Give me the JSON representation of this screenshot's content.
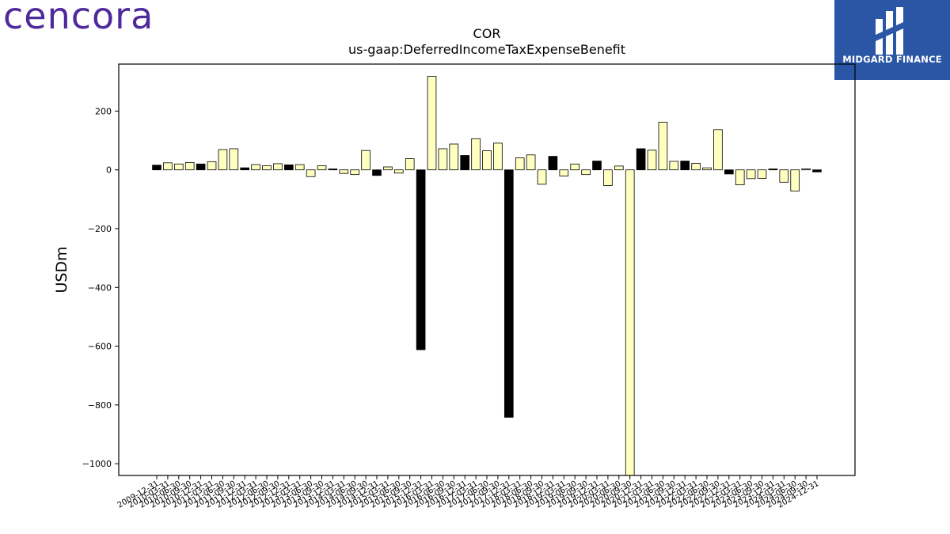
{
  "branding": {
    "company_logo_text": "cencora",
    "company_logo_color": "#4f2a9c",
    "partner_name": "MIDGARD FINANCE",
    "partner_bg_color": "#2b56a5"
  },
  "chart_data": {
    "type": "bar",
    "title": "COR",
    "subtitle": "us-gaap:DeferredIncomeTaxExpenseBenefit",
    "ylabel": "USDm",
    "xlabel": "",
    "ylim": [
      -1040,
      360
    ],
    "yticks": [
      200,
      0,
      -200,
      -400,
      -600,
      -800,
      -1000
    ],
    "grid": false,
    "colors": {
      "positive": "#ffffc0",
      "negative": "#000000",
      "outline": "#000000"
    },
    "categories": [
      "2009-12-31",
      "2010-03-31",
      "2010-06-30",
      "2010-09-30",
      "2010-12-31",
      "2011-03-31",
      "2011-06-30",
      "2011-09-30",
      "2011-12-31",
      "2012-03-31",
      "2012-06-30",
      "2012-09-30",
      "2012-12-31",
      "2013-03-31",
      "2013-06-30",
      "2013-09-30",
      "2013-12-31",
      "2014-03-31",
      "2014-06-30",
      "2014-09-30",
      "2014-12-31",
      "2015-03-31",
      "2015-06-30",
      "2015-09-30",
      "2015-12-31",
      "2016-03-31",
      "2016-06-30",
      "2016-09-30",
      "2016-12-31",
      "2017-03-31",
      "2017-06-30",
      "2017-09-30",
      "2017-12-31",
      "2018-03-31",
      "2018-06-30",
      "2018-09-30",
      "2018-12-31",
      "2019-03-31",
      "2019-06-30",
      "2019-09-30",
      "2019-12-31",
      "2020-03-31",
      "2020-06-30",
      "2020-09-30",
      "2020-12-31",
      "2021-03-31",
      "2021-06-30",
      "2021-09-30",
      "2021-12-31",
      "2022-03-31",
      "2022-06-30",
      "2022-09-30",
      "2022-12-31",
      "2023-03-31",
      "2023-06-30",
      "2023-09-30",
      "2023-12-31",
      "2024-03-31",
      "2024-06-30",
      "2024-09-30",
      "2024-12-31"
    ],
    "xtick_labels": [
      "2009-12-31",
      "2010-03-31",
      "2010-06-30",
      "2010-09-30",
      "2010-12-31",
      "2011-03-31",
      "2011-06-30",
      "2011-09-30",
      "2011-12-31",
      "2012-03-31",
      "2012-06-30",
      "2012-09-30",
      "2012-12-31",
      "2013-03-31",
      "2013-06-30",
      "2013-09-30",
      "2013-12-31",
      "2014-03-31",
      "2014-06-30",
      "2014-09-30",
      "2014-12-31",
      "2015-03-31",
      "2015-06-30",
      "2015-09-30",
      "2015-12-31",
      "2016-03-31",
      "2016-06-30",
      "2016-09-30",
      "2016-12-31",
      "2017-03-31",
      "2017-06-30",
      "2017-09-30",
      "2017-12-31",
      "2018-03-31",
      "2018-06-30",
      "2018-09-30",
      "2018-12-31",
      "2019-03-31",
      "2019-06-30",
      "2019-09-30",
      "2019-12-31",
      "2020-03-31",
      "2020-06-30",
      "2020-09-30",
      "2020-12-31",
      "2021-03-31",
      "2021-06-30",
      "2021-09-30",
      "2021-12-31",
      "2022-03-31",
      "2022-06-30",
      "2022-09-30",
      "2022-12-31",
      "2023-03-31",
      "2023-06-30",
      "2023-09-30",
      "2023-12-31",
      "2024-03-31",
      "2024-06-30",
      "2024-09-30",
      "2024-12-31"
    ],
    "values": [
      16,
      24,
      20,
      25,
      20,
      28,
      69,
      72,
      7,
      18,
      14,
      21,
      17,
      18,
      -23,
      14,
      3,
      -12,
      -16,
      66,
      -19,
      10,
      -11,
      38,
      -612,
      318,
      72,
      88,
      49,
      106,
      65,
      91,
      -842,
      41,
      51,
      -49,
      46,
      -21,
      20,
      -16,
      30,
      -53,
      13,
      -1040,
      72,
      67,
      162,
      29,
      30,
      22,
      7,
      137,
      -14,
      -51,
      -30,
      -29,
      3,
      -42,
      -72,
      3,
      -7
    ],
    "emphasis": [
      true,
      false,
      false,
      false,
      true,
      false,
      false,
      false,
      true,
      false,
      false,
      false,
      true,
      false,
      false,
      false,
      true,
      false,
      false,
      false,
      true,
      false,
      false,
      false,
      true,
      false,
      false,
      false,
      true,
      false,
      false,
      false,
      true,
      false,
      false,
      false,
      true,
      false,
      false,
      false,
      true,
      false,
      false,
      false,
      true,
      false,
      false,
      false,
      true,
      false,
      false,
      false,
      true,
      false,
      false,
      false,
      true,
      false,
      false,
      false,
      true
    ]
  }
}
